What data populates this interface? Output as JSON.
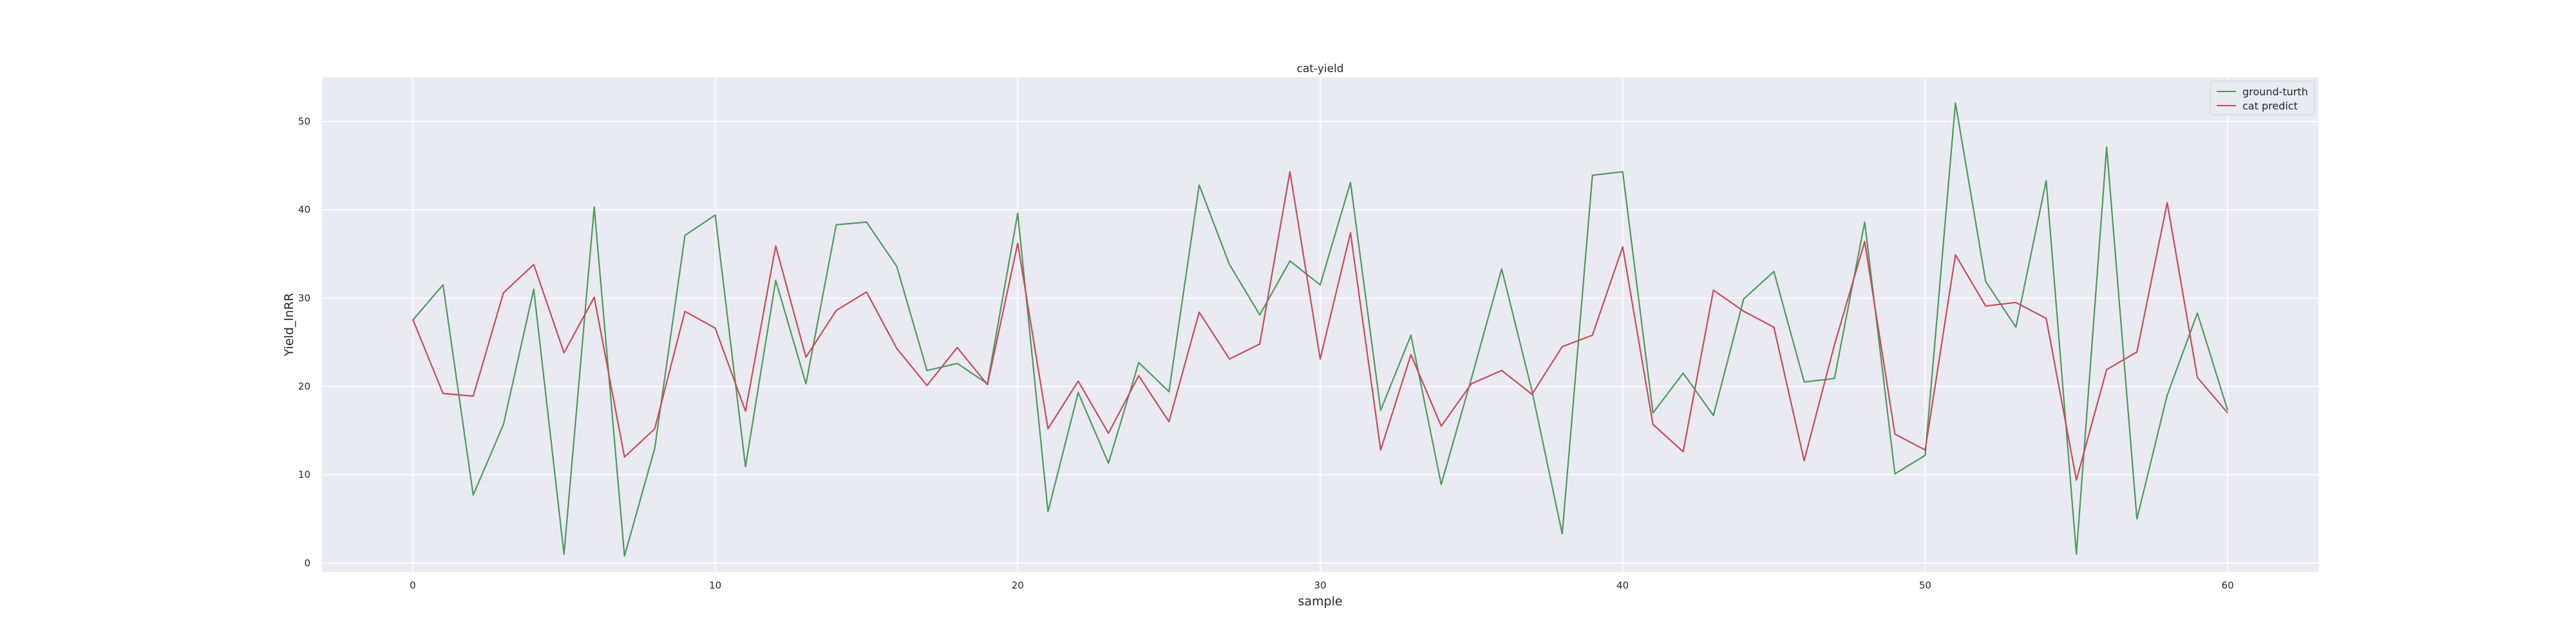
{
  "chart_data": {
    "type": "line",
    "title": "cat-yield",
    "xlabel": "sample",
    "ylabel": "Yield_lnRR",
    "xlim": [
      -3,
      63
    ],
    "ylim": [
      -1,
      55
    ],
    "xticks": [
      0,
      10,
      20,
      30,
      40,
      50,
      60
    ],
    "yticks": [
      0,
      10,
      20,
      30,
      40,
      50
    ],
    "grid": true,
    "legend_position": "top-right",
    "x": [
      0,
      1,
      2,
      3,
      4,
      5,
      6,
      7,
      8,
      9,
      10,
      11,
      12,
      13,
      14,
      15,
      16,
      17,
      18,
      19,
      20,
      21,
      22,
      23,
      24,
      25,
      26,
      27,
      28,
      29,
      30,
      31,
      32,
      33,
      34,
      35,
      36,
      37,
      38,
      39,
      40,
      41,
      42,
      43,
      44,
      45,
      46,
      47,
      48,
      49,
      50,
      51,
      52,
      53,
      54,
      55,
      56,
      57,
      58,
      59,
      60
    ],
    "series": [
      {
        "name": "ground-turth",
        "color": "#4c9a5c",
        "values": [
          27.5,
          31.5,
          7.7,
          15.7,
          31.0,
          1.0,
          40.3,
          0.8,
          13.0,
          37.1,
          39.4,
          10.9,
          32.0,
          20.3,
          38.3,
          38.6,
          33.6,
          21.8,
          22.6,
          20.3,
          39.6,
          5.8,
          19.3,
          11.3,
          22.7,
          19.4,
          42.8,
          33.8,
          28.1,
          34.2,
          31.5,
          43.1,
          17.3,
          25.8,
          8.9,
          20.9,
          33.3,
          19.5,
          3.3,
          43.9,
          44.3,
          17.0,
          21.5,
          16.7,
          29.9,
          33.0,
          20.5,
          20.9,
          38.6,
          10.1,
          12.2,
          52.1,
          31.9,
          26.7,
          43.3,
          1.0,
          47.1,
          5.0,
          19.0,
          28.3,
          17.3
        ]
      },
      {
        "name": "cat predict",
        "color": "#c94a56",
        "values": [
          27.6,
          19.2,
          18.9,
          30.6,
          33.8,
          23.8,
          30.1,
          12.0,
          15.2,
          28.5,
          26.6,
          17.2,
          35.9,
          23.3,
          28.6,
          30.7,
          24.3,
          20.1,
          24.4,
          20.2,
          36.2,
          15.2,
          20.6,
          14.7,
          21.2,
          16.0,
          28.4,
          23.1,
          24.8,
          44.3,
          23.1,
          37.4,
          12.8,
          23.6,
          15.5,
          20.3,
          21.8,
          19.1,
          24.5,
          25.8,
          35.8,
          15.7,
          12.6,
          30.9,
          28.5,
          26.7,
          11.6,
          24.7,
          36.4,
          14.6,
          12.8,
          34.9,
          29.1,
          29.5,
          27.7,
          9.4,
          21.9,
          23.9,
          40.8,
          21.0,
          17.0
        ]
      }
    ]
  }
}
